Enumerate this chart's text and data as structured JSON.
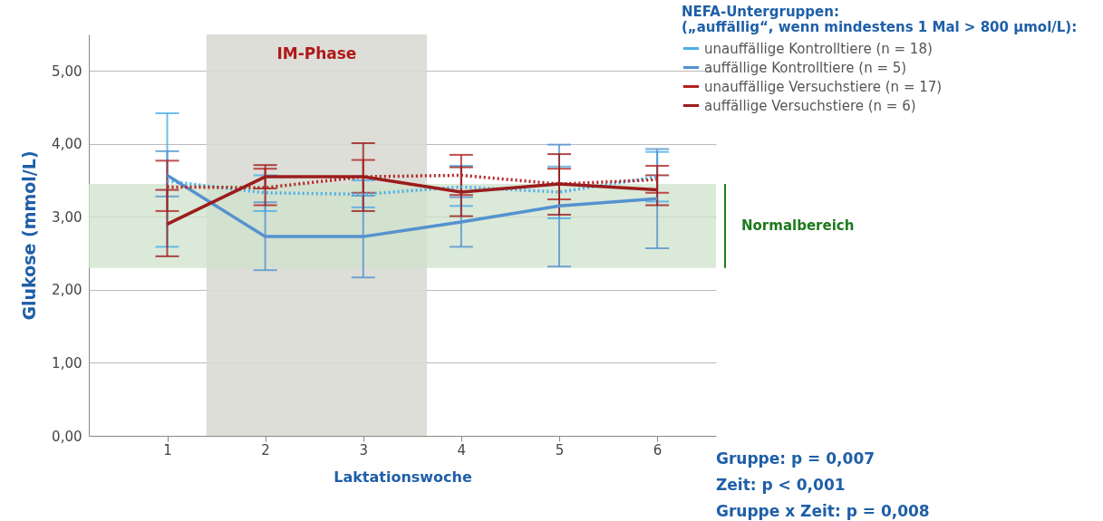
{
  "chart_data": {
    "type": "line",
    "xlabel": "Laktationswoche",
    "ylabel": "Glukose (mmol/L)",
    "legend_title": [
      "NEFA-Untergruppen:",
      "(„auffällig“, wenn mindestens 1 Mal > 800 µmol/L):"
    ],
    "x": [
      1,
      2,
      3,
      4,
      5,
      6
    ],
    "xlim": [
      0.2,
      6.6
    ],
    "xticks": [
      1,
      2,
      3,
      4,
      5,
      6
    ],
    "ylim": [
      0,
      5.5
    ],
    "yticks": [
      {
        "value": 0,
        "label": "0,00"
      },
      {
        "value": 1,
        "label": "1,00"
      },
      {
        "value": 2,
        "label": "2,00"
      },
      {
        "value": 3,
        "label": "3,00"
      },
      {
        "value": 4,
        "label": "4,00"
      },
      {
        "value": 5,
        "label": "5,00"
      }
    ],
    "grid": "y",
    "legend": "top right",
    "series": [
      {
        "name": "unauffällige Kontrolltiere (n = 18)",
        "color": "#4aaee6",
        "line_style": "dotted",
        "values": [
          3.49,
          3.33,
          3.31,
          3.41,
          3.34,
          3.55
        ],
        "errors": [
          [
            2.59,
            4.42
          ],
          [
            3.08,
            3.57
          ],
          [
            3.13,
            3.5
          ],
          [
            3.15,
            3.7
          ],
          [
            2.98,
            3.69
          ],
          [
            3.21,
            3.89
          ]
        ]
      },
      {
        "name": "auffällige Kontrolltiere (n = 5)",
        "color": "#5592cf",
        "line_style": "solid",
        "values": [
          3.57,
          2.73,
          2.73,
          2.93,
          3.15,
          3.25
        ],
        "errors": [
          [
            3.28,
            3.9
          ],
          [
            2.27,
            3.2
          ],
          [
            2.17,
            3.29
          ],
          [
            2.59,
            3.27
          ],
          [
            2.32,
            3.99
          ],
          [
            2.57,
            3.93
          ]
        ]
      },
      {
        "name": "unauffällige Versuchstiere (n = 17)",
        "color": "#b22222",
        "line_style": "dotted",
        "values": [
          3.41,
          3.4,
          3.55,
          3.57,
          3.45,
          3.51
        ],
        "errors": [
          [
            3.08,
            3.77
          ],
          [
            3.16,
            3.66
          ],
          [
            3.33,
            3.78
          ],
          [
            3.3,
            3.85
          ],
          [
            3.24,
            3.66
          ],
          [
            3.33,
            3.7
          ]
        ]
      },
      {
        "name": "auffällige Versuchstiere (n = 6)",
        "color": "#9b1c1c",
        "line_style": "solid",
        "values": [
          2.9,
          3.55,
          3.55,
          3.34,
          3.45,
          3.37
        ],
        "errors": [
          [
            2.46,
            3.37
          ],
          [
            3.39,
            3.71
          ],
          [
            3.08,
            4.01
          ],
          [
            3.01,
            3.68
          ],
          [
            3.03,
            3.86
          ],
          [
            3.16,
            3.57
          ]
        ]
      }
    ],
    "bands": [
      {
        "axis": "x",
        "from": 1.4,
        "to": 3.65,
        "label": "IM-Phase",
        "color": "#d9dad3"
      },
      {
        "axis": "y",
        "from": 2.3,
        "to": 3.45,
        "label": "Normalbereich",
        "color": "#cfe2cc"
      }
    ],
    "annotations": [
      "Gruppe: p = 0,007",
      "Zeit: p < 0,001",
      "Gruppe x Zeit: p = 0,008"
    ]
  }
}
